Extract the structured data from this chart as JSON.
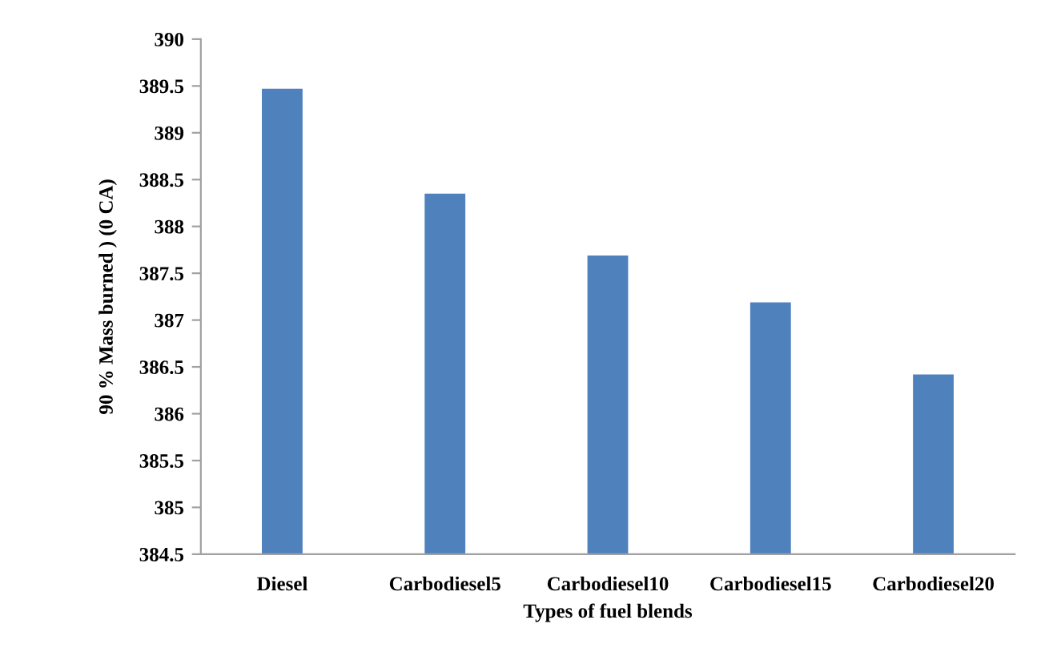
{
  "chart_data": {
    "type": "bar",
    "xlabel": "Types of fuel blends",
    "ylabel": "90 % Mass burned ) (0 CA)",
    "categories": [
      "Diesel",
      "Carbodiesel5",
      "Carbodiesel10",
      "Carbodiesel15",
      "Carbodiesel20"
    ],
    "values": [
      389.47,
      388.35,
      387.69,
      387.19,
      386.42
    ],
    "color": "#4f81bd",
    "ylim": [
      384.5,
      390
    ],
    "yticks": [
      {
        "value": 384.5,
        "label": "384.5"
      },
      {
        "value": 385,
        "label": "385"
      },
      {
        "value": 385.5,
        "label": "385.5"
      },
      {
        "value": 386,
        "label": "386"
      },
      {
        "value": 386.5,
        "label": "386.5"
      },
      {
        "value": 387,
        "label": "387"
      },
      {
        "value": 387.5,
        "label": "387.5"
      },
      {
        "value": 388,
        "label": "388"
      },
      {
        "value": 388.5,
        "label": "388.5"
      },
      {
        "value": 389,
        "label": "389"
      },
      {
        "value": 389.5,
        "label": "389.5"
      },
      {
        "value": 390,
        "label": "390"
      }
    ],
    "grid": false
  }
}
